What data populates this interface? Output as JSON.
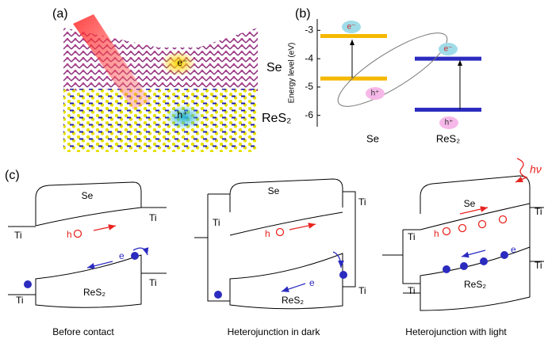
{
  "panel_labels": {
    "a": "(a)",
    "b": "(b)",
    "c": "(c)"
  },
  "structure": {
    "layer_top": "Se",
    "layer_bottom": "ReS₂",
    "electron": "e⁻",
    "hole": "h⁺"
  },
  "chart_data": {
    "type": "energy_levels",
    "ylabel": "Energy level (eV)",
    "ylim": [
      -6.4,
      -2.6
    ],
    "yticks": [
      -3,
      -4,
      -5,
      -6
    ],
    "categories": [
      "Se",
      "ReS₂"
    ],
    "conduction_band": [
      -3.2,
      -4.0
    ],
    "valence_band": [
      -4.7,
      -5.8
    ],
    "colors": [
      "#f5b800",
      "#2b2bc0"
    ],
    "annotations": {
      "electron": "e⁻",
      "hole": "h⁺"
    }
  },
  "diagrams": [
    {
      "caption": "Before contact",
      "top": "Se",
      "bottom": "ReS₂",
      "metal": "Ti",
      "hole": "h",
      "electron": "e"
    },
    {
      "caption": "Heterojunction in dark",
      "top": "Se",
      "bottom": "ReS₂",
      "metal": "Ti",
      "hole": "h",
      "electron": "e"
    },
    {
      "caption": "Heterojunction with light",
      "top": "Se",
      "bottom": "ReS₂",
      "metal": "Ti",
      "hole": "h",
      "electron": "e",
      "photon": "hν"
    }
  ]
}
